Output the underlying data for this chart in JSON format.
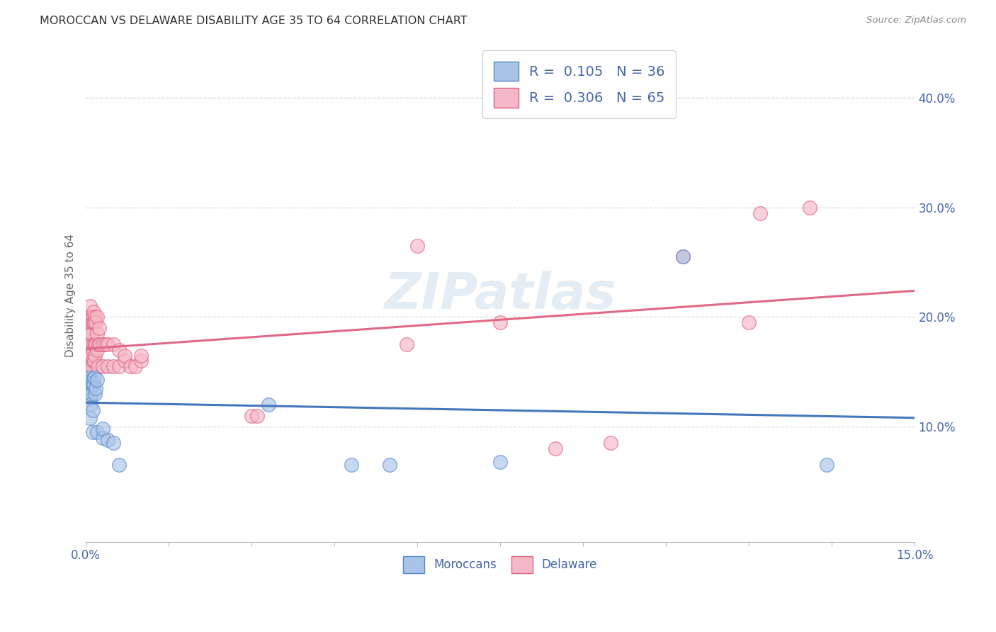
{
  "title": "MOROCCAN VS DELAWARE DISABILITY AGE 35 TO 64 CORRELATION CHART",
  "source": "Source: ZipAtlas.com",
  "ylabel": "Disability Age 35 to 64",
  "ytick_labels": [
    "10.0%",
    "20.0%",
    "30.0%",
    "40.0%"
  ],
  "ytick_values": [
    0.1,
    0.2,
    0.3,
    0.4
  ],
  "xlim": [
    0.0,
    0.15
  ],
  "ylim": [
    -0.005,
    0.445
  ],
  "moroccans_R": 0.105,
  "moroccans_N": 36,
  "delaware_R": 0.306,
  "delaware_N": 65,
  "blue_color": "#aac4e8",
  "pink_color": "#f5b8c8",
  "blue_edge_color": "#5588cc",
  "pink_edge_color": "#e06080",
  "blue_line_color": "#4477bb",
  "pink_line_color": "#e06888",
  "legend_text_color": "#4466aa",
  "watermark": "ZIPatlas",
  "background_color": "#ffffff",
  "grid_color": "#dddddd",
  "moroccans_x": [
    0.0002,
    0.0003,
    0.0004,
    0.0004,
    0.0005,
    0.0005,
    0.0006,
    0.0006,
    0.0007,
    0.0007,
    0.0008,
    0.0008,
    0.0009,
    0.0009,
    0.001,
    0.001,
    0.0012,
    0.0012,
    0.0013,
    0.0014,
    0.0015,
    0.0016,
    0.0018,
    0.002,
    0.002,
    0.003,
    0.003,
    0.004,
    0.005,
    0.006,
    0.033,
    0.048,
    0.055,
    0.075,
    0.108,
    0.134
  ],
  "moroccans_y": [
    0.14,
    0.135,
    0.143,
    0.13,
    0.14,
    0.138,
    0.133,
    0.145,
    0.138,
    0.125,
    0.135,
    0.108,
    0.14,
    0.12,
    0.143,
    0.13,
    0.095,
    0.115,
    0.14,
    0.138,
    0.145,
    0.13,
    0.135,
    0.143,
    0.095,
    0.09,
    0.098,
    0.088,
    0.085,
    0.065,
    0.12,
    0.065,
    0.065,
    0.068,
    0.255,
    0.065
  ],
  "delaware_x": [
    0.0002,
    0.0003,
    0.0003,
    0.0004,
    0.0004,
    0.0005,
    0.0005,
    0.0006,
    0.0006,
    0.0007,
    0.0007,
    0.0008,
    0.0008,
    0.0009,
    0.0009,
    0.001,
    0.001,
    0.0011,
    0.0011,
    0.0012,
    0.0012,
    0.0013,
    0.0013,
    0.0014,
    0.0014,
    0.0015,
    0.0015,
    0.0016,
    0.0016,
    0.0017,
    0.0018,
    0.0018,
    0.002,
    0.002,
    0.002,
    0.0022,
    0.0023,
    0.0024,
    0.0025,
    0.003,
    0.003,
    0.0035,
    0.004,
    0.004,
    0.005,
    0.005,
    0.006,
    0.006,
    0.007,
    0.007,
    0.008,
    0.009,
    0.01,
    0.01,
    0.03,
    0.031,
    0.058,
    0.06,
    0.075,
    0.085,
    0.095,
    0.108,
    0.12,
    0.122,
    0.131
  ],
  "delaware_y": [
    0.155,
    0.165,
    0.175,
    0.16,
    0.19,
    0.15,
    0.185,
    0.165,
    0.2,
    0.165,
    0.195,
    0.165,
    0.21,
    0.175,
    0.2,
    0.165,
    0.185,
    0.155,
    0.195,
    0.17,
    0.2,
    0.16,
    0.195,
    0.175,
    0.205,
    0.16,
    0.195,
    0.175,
    0.2,
    0.165,
    0.195,
    0.175,
    0.17,
    0.185,
    0.2,
    0.155,
    0.175,
    0.19,
    0.175,
    0.155,
    0.175,
    0.175,
    0.155,
    0.175,
    0.155,
    0.175,
    0.155,
    0.17,
    0.16,
    0.165,
    0.155,
    0.155,
    0.16,
    0.165,
    0.11,
    0.11,
    0.175,
    0.265,
    0.195,
    0.08,
    0.085,
    0.255,
    0.195,
    0.295,
    0.3
  ]
}
